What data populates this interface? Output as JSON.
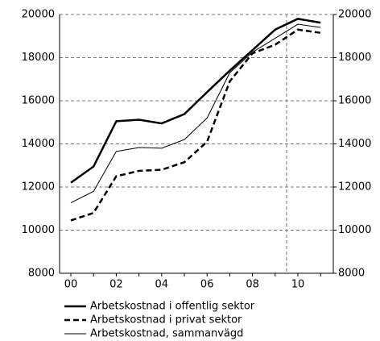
{
  "chart_data": {
    "type": "line",
    "categories": [
      "00",
      null,
      "02",
      null,
      "04",
      null,
      "06",
      null,
      "08",
      null,
      "10",
      null
    ],
    "series": [
      {
        "name": "Arbetskostnad i offentlig sektor",
        "color": "#000000",
        "width": 2.5,
        "dash": false,
        "values": [
          12200,
          12950,
          15050,
          15120,
          14950,
          15380,
          16400,
          17400,
          18350,
          19300,
          19800,
          19620
        ]
      },
      {
        "name": "Arbetskostnad i privat sektor",
        "color": "#000000",
        "width": 2.5,
        "dash": true,
        "values": [
          10450,
          10800,
          12500,
          12750,
          12800,
          13150,
          14100,
          16900,
          18200,
          18600,
          19300,
          19150
        ]
      },
      {
        "name": "Arbetskostnad, sammanvägd",
        "color": "#000000",
        "width": 1,
        "dash": false,
        "values": [
          11270,
          11800,
          13650,
          13830,
          13800,
          14200,
          15200,
          17300,
          18250,
          18900,
          19550,
          19400
        ]
      }
    ],
    "ylim": [
      8000,
      20000
    ],
    "yticks": [
      8000,
      10000,
      12000,
      14000,
      16000,
      18000,
      20000
    ],
    "y2lim": [
      8000,
      20000
    ],
    "y2ticks": [
      8000,
      10000,
      12000,
      14000,
      16000,
      18000,
      20000
    ],
    "vertical_line_at": 9.5,
    "grid": true
  }
}
